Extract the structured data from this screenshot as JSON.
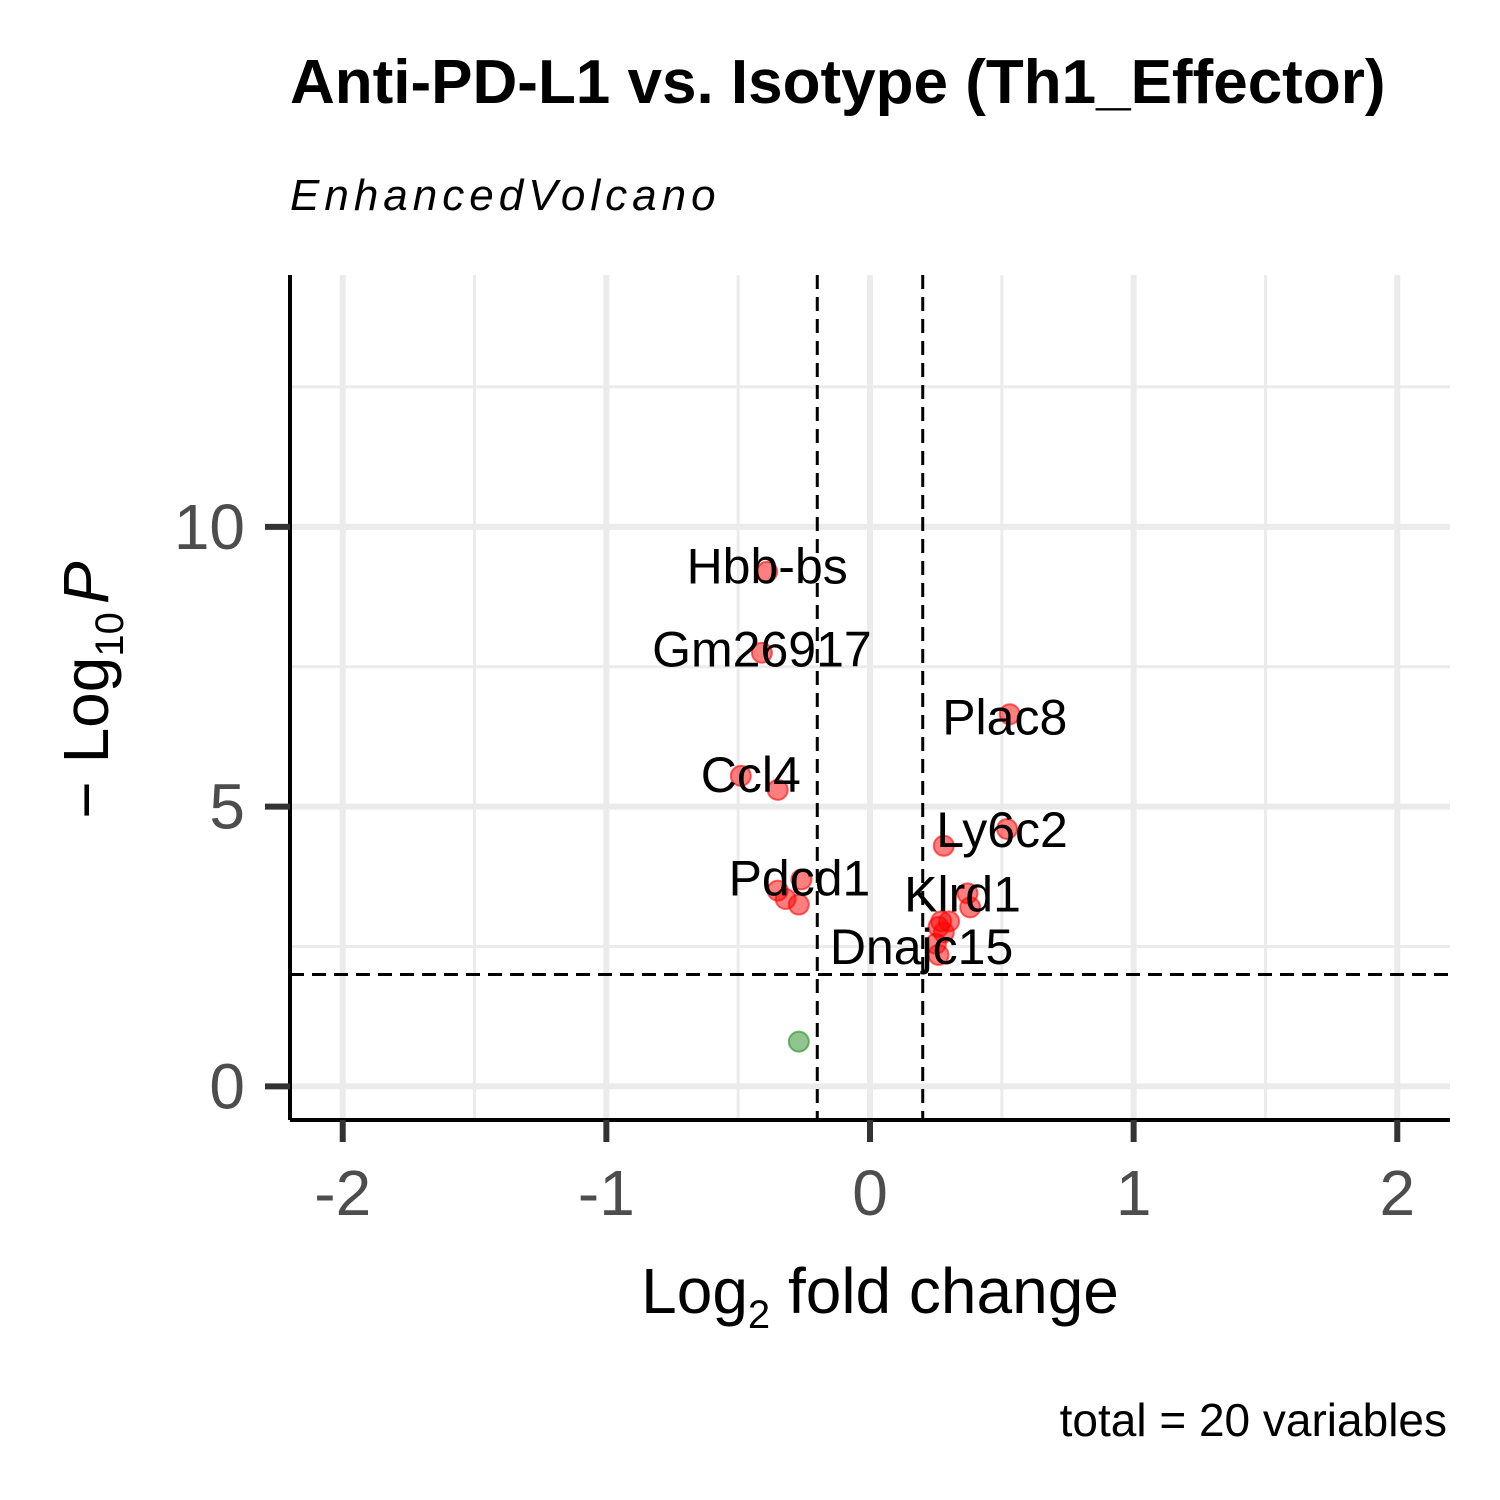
{
  "chart_data": {
    "type": "scatter",
    "title": "Anti-PD-L1 vs. Isotype (Th1_Effector)",
    "subtitle": "EnhancedVolcano",
    "caption": "total = 20 variables",
    "xlabel": {
      "main": "Log",
      "sub": "2",
      "rest": " fold change"
    },
    "ylabel": {
      "main": "− Log",
      "sub": "10",
      "italic": "P"
    },
    "xlim": [
      -2.2,
      2.2
    ],
    "ylim": [
      -0.6,
      14.5
    ],
    "x_ticks": [
      -2,
      -1,
      0,
      1,
      2
    ],
    "x_tick_labels": [
      "-2",
      "-1",
      "0",
      "1",
      "2"
    ],
    "y_ticks": [
      0,
      5,
      10
    ],
    "y_tick_labels": [
      "0",
      "5",
      "10"
    ],
    "fc_cutoff": [
      -0.2,
      0.2
    ],
    "p_cutoff": 2,
    "colors": {
      "significant": "#ff0000",
      "ns": "#228b22"
    },
    "points": [
      {
        "x": -0.39,
        "y": 9.2,
        "label": "Hbb-bs",
        "sig": true
      },
      {
        "x": -0.41,
        "y": 7.75,
        "label": "Gm26917",
        "sig": true
      },
      {
        "x": 0.53,
        "y": 6.65,
        "label": "Plac8",
        "sig": true
      },
      {
        "x": -0.49,
        "y": 5.55,
        "label": "Ccl4",
        "sig": true
      },
      {
        "x": -0.35,
        "y": 5.3,
        "label": "",
        "sig": true
      },
      {
        "x": 0.52,
        "y": 4.6,
        "label": "Ly6c2",
        "sig": true
      },
      {
        "x": 0.28,
        "y": 4.3,
        "label": "",
        "sig": true
      },
      {
        "x": -0.26,
        "y": 3.7,
        "label": "Pdcd1",
        "sig": true
      },
      {
        "x": -0.35,
        "y": 3.5,
        "label": "",
        "sig": true
      },
      {
        "x": -0.32,
        "y": 3.35,
        "label": "",
        "sig": true
      },
      {
        "x": -0.27,
        "y": 3.25,
        "label": "",
        "sig": true
      },
      {
        "x": 0.37,
        "y": 3.45,
        "label": "Klrd1",
        "sig": true
      },
      {
        "x": 0.38,
        "y": 3.2,
        "label": "",
        "sig": true
      },
      {
        "x": 0.3,
        "y": 2.95,
        "label": "",
        "sig": true
      },
      {
        "x": 0.26,
        "y": 2.85,
        "label": "Dnajc15",
        "sig": true
      },
      {
        "x": 0.28,
        "y": 2.75,
        "label": "",
        "sig": true
      },
      {
        "x": 0.25,
        "y": 2.55,
        "label": "",
        "sig": true
      },
      {
        "x": 0.26,
        "y": 2.35,
        "label": "",
        "sig": true
      },
      {
        "x": 0.27,
        "y": 2.95,
        "label": "",
        "sig": true
      },
      {
        "x": -0.27,
        "y": 0.8,
        "label": "",
        "sig": false
      }
    ]
  }
}
